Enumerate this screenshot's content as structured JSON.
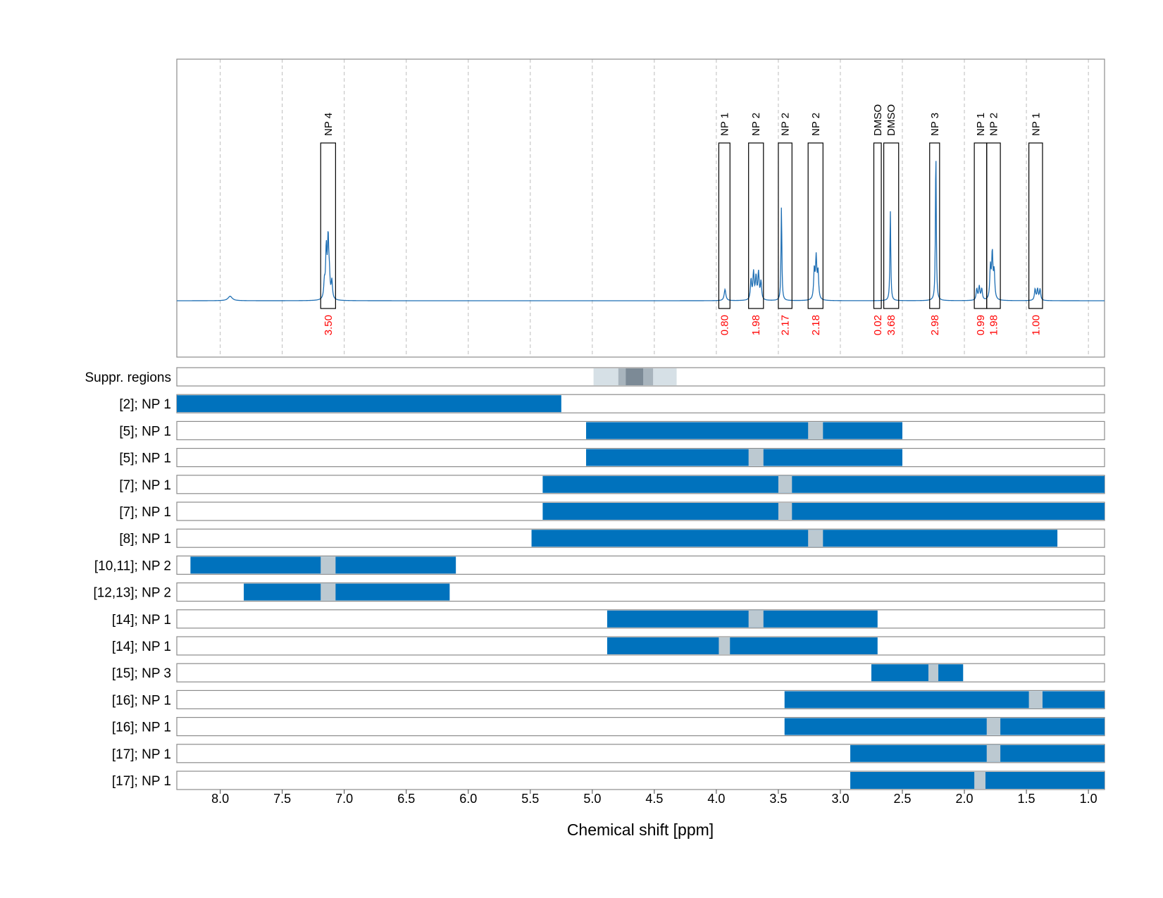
{
  "chart_data": {
    "type": "nmr-spectrum-with-range-bars",
    "xlabel": "Chemical shift [ppm]",
    "xlim": [
      8.35,
      0.87
    ],
    "x_reversed": true,
    "grid": "vertical dashed at each tick",
    "ticks": [
      {
        "value": 8.0,
        "label": "8.0"
      },
      {
        "value": 7.5,
        "label": "7.5"
      },
      {
        "value": 7.0,
        "label": "7.0"
      },
      {
        "value": 6.5,
        "label": "6.5"
      },
      {
        "value": 6.0,
        "label": "6.0"
      },
      {
        "value": 5.5,
        "label": "5.5"
      },
      {
        "value": 5.0,
        "label": "5.0"
      },
      {
        "value": 4.5,
        "label": "4.5"
      },
      {
        "value": 4.0,
        "label": "4.0"
      },
      {
        "value": 3.5,
        "label": "3.5"
      },
      {
        "value": 3.0,
        "label": "3.0"
      },
      {
        "value": 2.5,
        "label": "2.5"
      },
      {
        "value": 2.0,
        "label": "2.0"
      },
      {
        "value": 1.5,
        "label": "1.5"
      },
      {
        "value": 1.0,
        "label": "1.0"
      }
    ],
    "spectrum_peaks": [
      {
        "center": 7.92,
        "height": 0.02,
        "width": 0.02
      },
      {
        "center": 7.145,
        "height": 0.22,
        "width": 0.006
      },
      {
        "center": 7.13,
        "height": 0.26,
        "width": 0.006
      },
      {
        "center": 7.12,
        "height": 0.09,
        "width": 0.006
      },
      {
        "center": 7.1,
        "height": 0.08,
        "width": 0.006
      },
      {
        "center": 7.16,
        "height": 0.07,
        "width": 0.006
      },
      {
        "center": 3.93,
        "height": 0.05,
        "width": 0.008
      },
      {
        "center": 3.72,
        "height": 0.09,
        "width": 0.006
      },
      {
        "center": 3.7,
        "height": 0.12,
        "width": 0.006
      },
      {
        "center": 3.68,
        "height": 0.1,
        "width": 0.006
      },
      {
        "center": 3.66,
        "height": 0.12,
        "width": 0.006
      },
      {
        "center": 3.64,
        "height": 0.08,
        "width": 0.006
      },
      {
        "center": 3.475,
        "height": 0.42,
        "width": 0.004
      },
      {
        "center": 3.21,
        "height": 0.13,
        "width": 0.006
      },
      {
        "center": 3.195,
        "height": 0.18,
        "width": 0.006
      },
      {
        "center": 3.18,
        "height": 0.12,
        "width": 0.006
      },
      {
        "center": 2.597,
        "height": 0.4,
        "width": 0.004
      },
      {
        "center": 2.23,
        "height": 0.67,
        "width": 0.004
      },
      {
        "center": 1.9,
        "height": 0.05,
        "width": 0.006
      },
      {
        "center": 1.88,
        "height": 0.06,
        "width": 0.006
      },
      {
        "center": 1.86,
        "height": 0.05,
        "width": 0.006
      },
      {
        "center": 1.79,
        "height": 0.14,
        "width": 0.006
      },
      {
        "center": 1.775,
        "height": 0.2,
        "width": 0.006
      },
      {
        "center": 1.76,
        "height": 0.12,
        "width": 0.006
      },
      {
        "center": 1.43,
        "height": 0.05,
        "width": 0.006
      },
      {
        "center": 1.41,
        "height": 0.05,
        "width": 0.006
      },
      {
        "center": 1.39,
        "height": 0.05,
        "width": 0.006
      }
    ],
    "peak_boxes": [
      {
        "label": "NP 4",
        "from": 7.19,
        "to": 7.07,
        "integral": "3.50"
      },
      {
        "label": "NP 1",
        "from": 3.98,
        "to": 3.89,
        "integral": "0.80"
      },
      {
        "label": "NP 2",
        "from": 3.74,
        "to": 3.62,
        "integral": "1.98"
      },
      {
        "label": "NP 2",
        "from": 3.5,
        "to": 3.39,
        "integral": "2.17"
      },
      {
        "label": "NP 2",
        "from": 3.26,
        "to": 3.14,
        "integral": "2.18"
      },
      {
        "label": "DMSO",
        "from": 2.73,
        "to": 2.67,
        "integral": "0.02"
      },
      {
        "label": "DMSO",
        "from": 2.65,
        "to": 2.53,
        "integral": "3.68"
      },
      {
        "label": "NP 3",
        "from": 2.28,
        "to": 2.2,
        "integral": "2.98"
      },
      {
        "label": "NP 1",
        "from": 1.92,
        "to": 1.82,
        "integral": "0.99"
      },
      {
        "label": "NP 2",
        "from": 1.82,
        "to": 1.71,
        "integral": "1.98"
      },
      {
        "label": "NP 1",
        "from": 1.48,
        "to": 1.37,
        "integral": "1.00"
      }
    ],
    "suppressed_regions": {
      "label": "Suppr. regions",
      "bands": [
        {
          "from": 4.99,
          "to": 4.32,
          "shade": "light"
        },
        {
          "from": 4.79,
          "to": 4.51,
          "shade": "mid"
        },
        {
          "from": 4.73,
          "to": 4.59,
          "shade": "dark"
        }
      ]
    },
    "range_rows": [
      {
        "label": "[2]; NP 1",
        "from": 8.35,
        "to": 5.25,
        "gap": null
      },
      {
        "label": "[5]; NP 1",
        "from": 5.05,
        "to": 2.5,
        "gap": [
          3.26,
          3.14
        ]
      },
      {
        "label": "[5]; NP 1",
        "from": 5.05,
        "to": 2.5,
        "gap": [
          3.74,
          3.62
        ]
      },
      {
        "label": "[7]; NP 1",
        "from": 5.4,
        "to": 0.87,
        "gap": [
          3.5,
          3.39
        ]
      },
      {
        "label": "[7]; NP 1",
        "from": 5.4,
        "to": 0.87,
        "gap": [
          3.5,
          3.39
        ]
      },
      {
        "label": "[8]; NP 1",
        "from": 5.49,
        "to": 1.25,
        "gap": [
          3.26,
          3.14
        ]
      },
      {
        "label": "[10,11]; NP 2",
        "from": 8.24,
        "to": 6.1,
        "gap": [
          7.19,
          7.07
        ]
      },
      {
        "label": "[12,13]; NP 2",
        "from": 7.81,
        "to": 6.15,
        "gap": [
          7.19,
          7.07
        ]
      },
      {
        "label": "[14]; NP 1",
        "from": 4.88,
        "to": 2.7,
        "gap": [
          3.74,
          3.62
        ]
      },
      {
        "label": "[14]; NP 1",
        "from": 4.88,
        "to": 2.7,
        "gap": [
          3.98,
          3.89
        ]
      },
      {
        "label": "[15]; NP 3",
        "from": 2.75,
        "to": 2.01,
        "gap": [
          2.29,
          2.21
        ]
      },
      {
        "label": "[16]; NP 1",
        "from": 3.45,
        "to": 0.87,
        "gap": [
          1.48,
          1.37
        ]
      },
      {
        "label": "[16]; NP 1",
        "from": 3.45,
        "to": 0.87,
        "gap": [
          1.82,
          1.71
        ]
      },
      {
        "label": "[17]; NP 1",
        "from": 2.92,
        "to": 0.87,
        "gap": [
          1.82,
          1.71
        ]
      },
      {
        "label": "[17]; NP 1",
        "from": 2.92,
        "to": 0.87,
        "gap": [
          1.92,
          1.83
        ]
      }
    ],
    "colors": {
      "spectrum": "#1f6fb4",
      "bar": "#0072bd",
      "gap": "#bcc9d1",
      "integral": "#ff0000",
      "frame": "#8c8c8c",
      "grid": "#bdbdbd",
      "suppr_light": "#d6e0e6",
      "suppr_mid": "#a8b4bd",
      "suppr_dark": "#7c8a96"
    }
  }
}
